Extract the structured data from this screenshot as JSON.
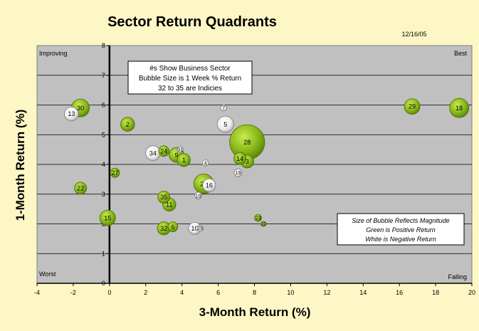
{
  "chart_data": {
    "type": "scatter",
    "subtype": "bubble",
    "title": "Sector Return Quadrants",
    "date": "12/16/05",
    "xlabel": "3-Month Return (%)",
    "ylabel": "1-Month Return (%)",
    "xlim": [
      -4,
      20
    ],
    "ylim": [
      0,
      8
    ],
    "x_ticks": [
      "-4",
      "-2",
      "0",
      "2",
      "4",
      "6",
      "8",
      "10",
      "12",
      "14",
      "16",
      "18",
      "20"
    ],
    "y_ticks": [
      "0",
      "1",
      "2",
      "3",
      "4",
      "5",
      "6",
      "7",
      "8"
    ],
    "grid": "horizontal",
    "quadrant_labels": {
      "top_left": "Improving",
      "top_right": "Best",
      "bottom_left": "Worst",
      "bottom_right": "Falling"
    },
    "legend_box": [
      "#s Show Business Sector",
      "Bubble Size is 1 Week % Return",
      "32 to 35 are Indicies"
    ],
    "note_box": [
      "Size of Bubble Reflects Magnitude",
      "Green is Positive Return",
      "White is Negative Return"
    ],
    "colors": {
      "background": "#fdf7c6",
      "plot_area": "#c0c0c0",
      "positive": "#8cbb1c",
      "negative": "#f2f2f2"
    },
    "points": [
      {
        "label": "30",
        "x": -1.6,
        "y": 5.9,
        "weekly_abs": 1.3,
        "sign": "positive"
      },
      {
        "label": "13",
        "x": -2.1,
        "y": 5.7,
        "weekly_abs": 0.8,
        "sign": "negative"
      },
      {
        "label": "2",
        "x": 1.0,
        "y": 5.35,
        "weekly_abs": 0.8,
        "sign": "positive"
      },
      {
        "label": "7",
        "x": 6.3,
        "y": 5.9,
        "weekly_abs": 0.15,
        "sign": "negative"
      },
      {
        "label": "5",
        "x": 6.4,
        "y": 5.35,
        "weekly_abs": 1.1,
        "sign": "negative"
      },
      {
        "label": "28",
        "x": 7.6,
        "y": 4.75,
        "weekly_abs": 5.0,
        "sign": "positive"
      },
      {
        "label": "29",
        "x": 16.7,
        "y": 5.95,
        "weekly_abs": 1.0,
        "sign": "positive"
      },
      {
        "label": "18",
        "x": 19.3,
        "y": 5.9,
        "weekly_abs": 1.5,
        "sign": "positive"
      },
      {
        "label": "24",
        "x": 3.0,
        "y": 4.45,
        "weekly_abs": 0.45,
        "sign": "positive"
      },
      {
        "label": "34",
        "x": 2.4,
        "y": 4.38,
        "weekly_abs": 0.9,
        "sign": "negative"
      },
      {
        "label": "31",
        "x": 3.9,
        "y": 4.5,
        "weekly_abs": 0.15,
        "sign": "negative"
      },
      {
        "label": "9",
        "x": 3.7,
        "y": 4.32,
        "weekly_abs": 0.9,
        "sign": "positive"
      },
      {
        "label": "1",
        "x": 4.1,
        "y": 4.15,
        "weekly_abs": 0.7,
        "sign": "positive"
      },
      {
        "label": "4",
        "x": 5.3,
        "y": 4.05,
        "weekly_abs": 0.15,
        "sign": "negative"
      },
      {
        "label": "14",
        "x": 7.2,
        "y": 4.2,
        "weekly_abs": 0.6,
        "sign": "positive"
      },
      {
        "label": "3",
        "x": 7.6,
        "y": 4.1,
        "weekly_abs": 0.7,
        "sign": "positive"
      },
      {
        "label": "19",
        "x": 7.1,
        "y": 3.72,
        "weekly_abs": 0.25,
        "sign": "negative"
      },
      {
        "label": "27",
        "x": 0.3,
        "y": 3.72,
        "weekly_abs": 0.35,
        "sign": "positive"
      },
      {
        "label": "22",
        "x": -1.6,
        "y": 3.2,
        "weekly_abs": 0.6,
        "sign": "positive"
      },
      {
        "label": "26",
        "x": 5.2,
        "y": 3.35,
        "weekly_abs": 1.6,
        "sign": "positive"
      },
      {
        "label": "16",
        "x": 5.5,
        "y": 3.3,
        "weekly_abs": 0.7,
        "sign": "negative"
      },
      {
        "label": "35",
        "x": 3.0,
        "y": 2.9,
        "weekly_abs": 0.6,
        "sign": "positive"
      },
      {
        "label": "11",
        "x": 3.3,
        "y": 2.65,
        "weekly_abs": 0.7,
        "sign": "positive"
      },
      {
        "label": "10",
        "x": 4.9,
        "y": 2.95,
        "weekly_abs": 0.2,
        "sign": "negative"
      },
      {
        "label": "15",
        "x": -0.1,
        "y": 2.2,
        "weekly_abs": 1.0,
        "sign": "positive"
      },
      {
        "label": "23",
        "x": 8.2,
        "y": 2.2,
        "weekly_abs": 0.2,
        "sign": "positive"
      },
      {
        "label": "20",
        "x": 8.5,
        "y": 2.0,
        "weekly_abs": 0.1,
        "sign": "positive"
      },
      {
        "label": "32",
        "x": 3.0,
        "y": 1.85,
        "weekly_abs": 0.7,
        "sign": "positive"
      },
      {
        "label": "6",
        "x": 3.5,
        "y": 1.9,
        "weekly_abs": 0.4,
        "sign": "positive"
      },
      {
        "label": "10",
        "x": 4.7,
        "y": 1.85,
        "weekly_abs": 0.6,
        "sign": "negative"
      },
      {
        "label": "25",
        "x": 5.0,
        "y": 1.85,
        "weekly_abs": 0.15,
        "sign": "negative"
      }
    ]
  }
}
